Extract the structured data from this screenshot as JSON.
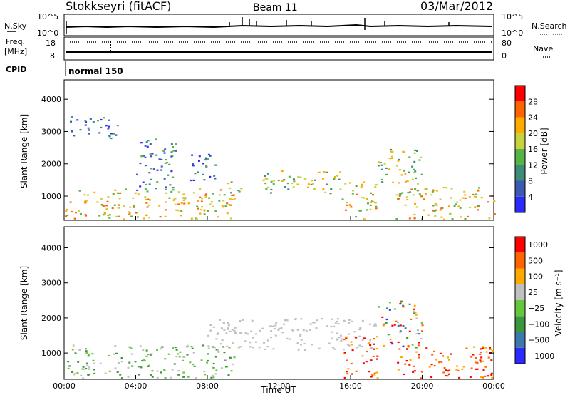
{
  "header": {
    "station": "Stokkseyri (fitACF)",
    "beam": "Beam 11",
    "date": "03/Mar/2012"
  },
  "noise_panel": {
    "left_label": "N.Sky",
    "right_label": "N.Search",
    "left_ticks": [
      "10^5",
      "10^0"
    ],
    "right_ticks": [
      "10^5",
      "10^0"
    ]
  },
  "freq_panel": {
    "left_label_line1": "Freq.",
    "left_label_line2": "[MHz]",
    "right_label": "Nave",
    "left_ticks": [
      "18",
      "8"
    ],
    "right_ticks": [
      "80",
      "0"
    ]
  },
  "cpid_panel": {
    "label": "CPID",
    "value": "normal 150"
  },
  "x_axis": {
    "label": "Time UT",
    "tick_labels": [
      "00:00",
      "04:00",
      "08:00",
      "12:00",
      "16:00",
      "20:00",
      "00:00"
    ]
  },
  "chart_data": [
    {
      "type": "heatmap",
      "name": "power-panel",
      "ylabel": "Slant Range [km]",
      "x_range_hours": [
        0,
        24
      ],
      "ylim": [
        250,
        4600
      ],
      "y_ticks": [
        1000,
        2000,
        3000,
        4000
      ],
      "colorbar": {
        "label": "Power [dB]",
        "tick_labels": [
          "4",
          "8",
          "12",
          "16",
          "20",
          "24",
          "28"
        ],
        "range": [
          0,
          32
        ],
        "colors": [
          "#2a2aff",
          "#3c5ab4",
          "#3c8c78",
          "#55b446",
          "#c8d23c",
          "#ffaa00",
          "#ff6400",
          "#ff0000"
        ]
      },
      "echo_regions": [
        {
          "t0": 0.0,
          "t1": 9.5,
          "r0": 300,
          "r1": 1250,
          "level": "high"
        },
        {
          "t0": 0.3,
          "t1": 3.0,
          "r0": 2800,
          "r1": 3500,
          "level": "low"
        },
        {
          "t0": 4.0,
          "t1": 6.2,
          "r0": 1200,
          "r1": 2800,
          "level": "low"
        },
        {
          "t0": 7.0,
          "t1": 8.5,
          "r0": 1500,
          "r1": 2400,
          "level": "low"
        },
        {
          "t0": 9.0,
          "t1": 10.0,
          "r0": 1100,
          "r1": 1500,
          "level": "mid"
        },
        {
          "t0": 11.0,
          "t1": 15.5,
          "r0": 1100,
          "r1": 1800,
          "level": "mid"
        },
        {
          "t0": 15.5,
          "t1": 17.5,
          "r0": 300,
          "r1": 1500,
          "level": "high"
        },
        {
          "t0": 17.5,
          "t1": 20.0,
          "r0": 1400,
          "r1": 2500,
          "level": "mid"
        },
        {
          "t0": 18.5,
          "t1": 24.0,
          "r0": 300,
          "r1": 1300,
          "level": "high"
        }
      ]
    },
    {
      "type": "heatmap",
      "name": "velocity-panel",
      "ylabel": "Slant Range [km]",
      "x_range_hours": [
        0,
        24
      ],
      "ylim": [
        250,
        4600
      ],
      "y_ticks": [
        1000,
        2000,
        3000,
        4000
      ],
      "colorbar": {
        "label": "Velocity [m s⁻¹]",
        "tick_labels": [
          "1000",
          "500",
          "100",
          "25",
          "−25",
          "−100",
          "−500",
          "−1000"
        ],
        "colors": [
          "#2a2aff",
          "#3c78aa",
          "#3c963c",
          "#64c83c",
          "#c0c0c0",
          "#ffaa00",
          "#ff6400",
          "#ff0000"
        ]
      },
      "echo_regions": [
        {
          "t0": 0.0,
          "t1": 9.5,
          "r0": 300,
          "r1": 1250,
          "sign": "positive"
        },
        {
          "t0": 8.0,
          "t1": 17.5,
          "r0": 1100,
          "r1": 2000,
          "sign": "ground"
        },
        {
          "t0": 15.5,
          "t1": 17.5,
          "r0": 300,
          "r1": 1500,
          "sign": "negative"
        },
        {
          "t0": 17.5,
          "t1": 20.0,
          "r0": 1100,
          "r1": 2500,
          "sign": "mixed"
        },
        {
          "t0": 18.5,
          "t1": 24.0,
          "r0": 300,
          "r1": 1200,
          "sign": "negative"
        }
      ]
    }
  ]
}
